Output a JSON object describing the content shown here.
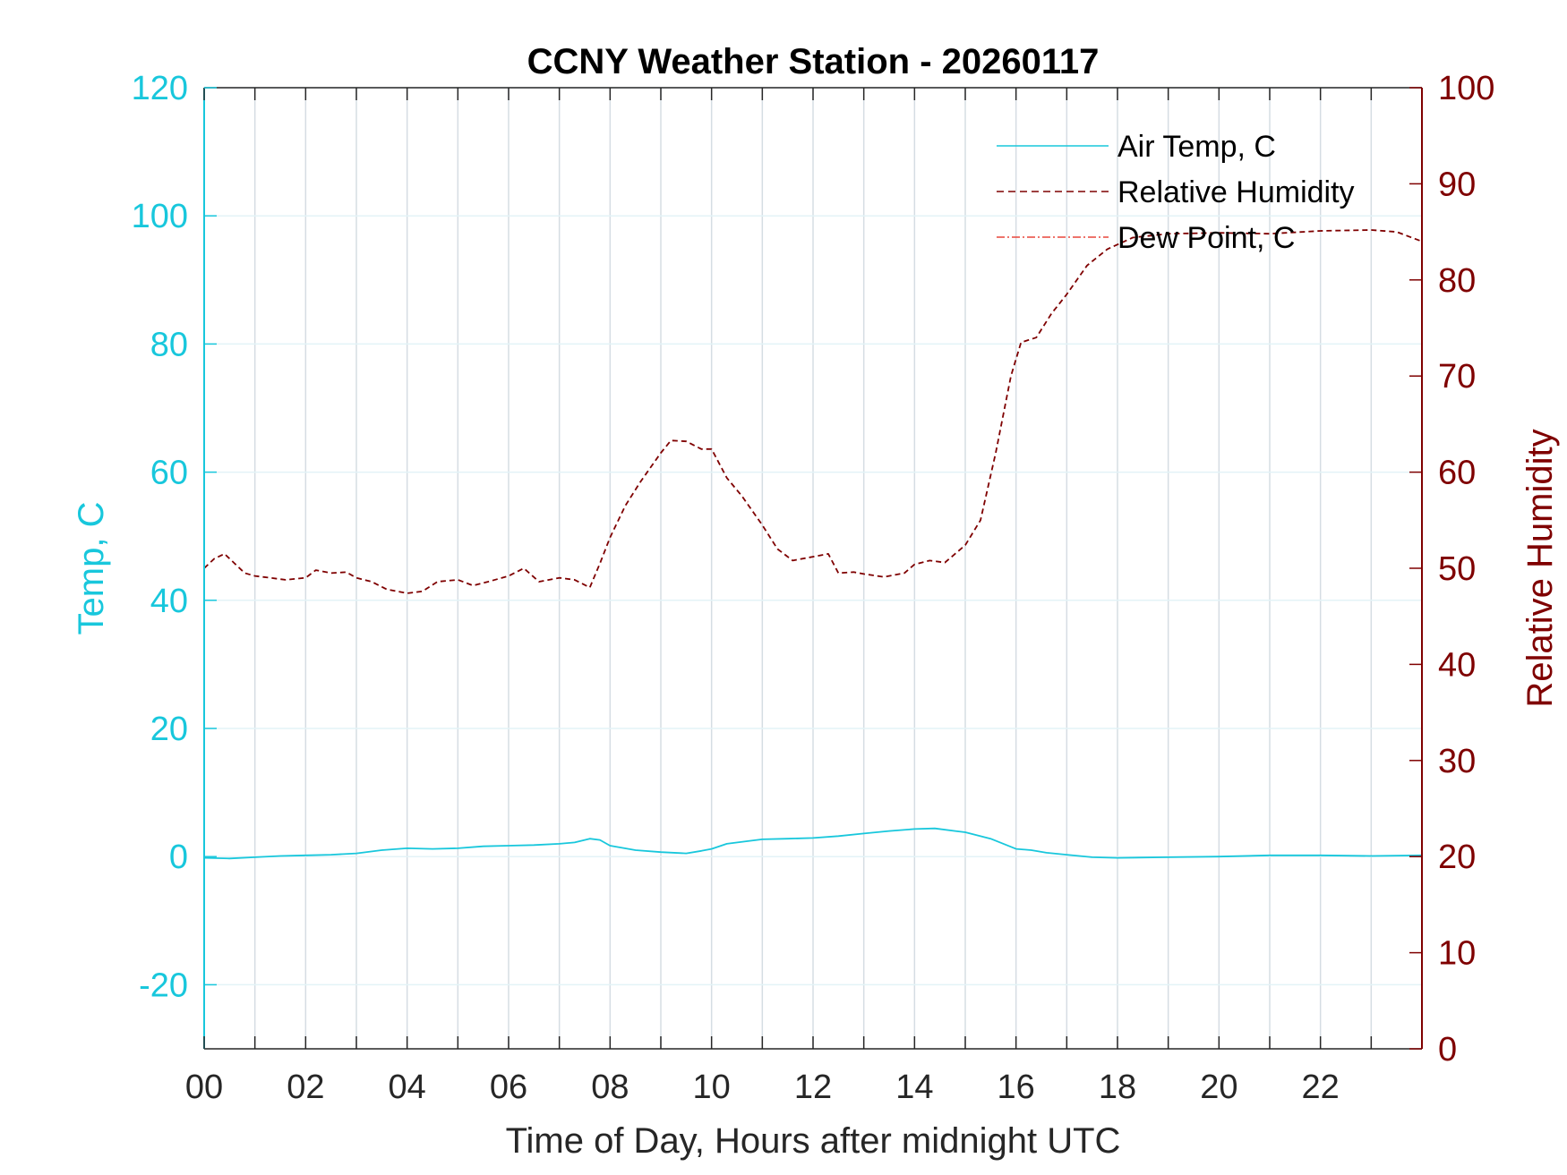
{
  "colors": {
    "temp": "#18c7dc",
    "rh": "#7f0000",
    "dew": "#e8463c",
    "grid": "#d5dde3",
    "axis": "#262626"
  },
  "chart_data": {
    "type": "line",
    "title": "CCNY Weather Station - 20260117",
    "xlabel": "Time of Day, Hours after midnight UTC",
    "ylabel": "Temp, C",
    "y2label": "Relative Humidity",
    "xlim": [
      0,
      24
    ],
    "ylim": [
      -30,
      120
    ],
    "y2lim": [
      0,
      100
    ],
    "grid": true,
    "legend_position": "top-right",
    "x_ticks": [
      {
        "value": 0,
        "label": "00"
      },
      {
        "value": 2,
        "label": "02"
      },
      {
        "value": 4,
        "label": "04"
      },
      {
        "value": 6,
        "label": "06"
      },
      {
        "value": 8,
        "label": "08"
      },
      {
        "value": 10,
        "label": "10"
      },
      {
        "value": 12,
        "label": "12"
      },
      {
        "value": 14,
        "label": "14"
      },
      {
        "value": 16,
        "label": "16"
      },
      {
        "value": 18,
        "label": "18"
      },
      {
        "value": 20,
        "label": "20"
      },
      {
        "value": 22,
        "label": "22"
      }
    ],
    "y_ticks": [
      -20,
      0,
      20,
      40,
      60,
      80,
      100,
      120
    ],
    "y2_ticks": [
      0,
      10,
      20,
      30,
      40,
      50,
      60,
      70,
      80,
      90,
      100
    ],
    "series": [
      {
        "name": "Air Temp, C",
        "axis": "left",
        "style": "solid",
        "points": [
          [
            0,
            -0.2
          ],
          [
            0.5,
            -0.3
          ],
          [
            1,
            -0.1
          ],
          [
            1.5,
            0.1
          ],
          [
            2,
            0.2
          ],
          [
            2.5,
            0.3
          ],
          [
            3,
            0.5
          ],
          [
            3.5,
            1.0
          ],
          [
            4,
            1.3
          ],
          [
            4.5,
            1.2
          ],
          [
            5,
            1.3
          ],
          [
            5.5,
            1.6
          ],
          [
            6,
            1.7
          ],
          [
            6.5,
            1.8
          ],
          [
            7,
            2.0
          ],
          [
            7.3,
            2.2
          ],
          [
            7.6,
            2.8
          ],
          [
            7.8,
            2.6
          ],
          [
            8,
            1.7
          ],
          [
            8.5,
            1.0
          ],
          [
            9,
            0.7
          ],
          [
            9.5,
            0.5
          ],
          [
            9.8,
            0.9
          ],
          [
            10,
            1.2
          ],
          [
            10.3,
            2.0
          ],
          [
            10.7,
            2.4
          ],
          [
            11,
            2.7
          ],
          [
            11.5,
            2.8
          ],
          [
            12,
            2.9
          ],
          [
            12.5,
            3.2
          ],
          [
            13,
            3.6
          ],
          [
            13.5,
            4.0
          ],
          [
            14,
            4.3
          ],
          [
            14.4,
            4.4
          ],
          [
            14.8,
            4.0
          ],
          [
            15,
            3.8
          ],
          [
            15.5,
            2.8
          ],
          [
            16,
            1.2
          ],
          [
            16.3,
            1.0
          ],
          [
            16.6,
            0.6
          ],
          [
            17,
            0.3
          ],
          [
            17.5,
            -0.1
          ],
          [
            18,
            -0.2
          ],
          [
            19,
            -0.1
          ],
          [
            20,
            0.0
          ],
          [
            21,
            0.2
          ],
          [
            22,
            0.2
          ],
          [
            23,
            0.1
          ],
          [
            24,
            0.2
          ]
        ]
      },
      {
        "name": "Relative Humidity",
        "axis": "right",
        "style": "dashed",
        "points": [
          [
            0,
            50
          ],
          [
            0.2,
            51
          ],
          [
            0.4,
            51.5
          ],
          [
            0.6,
            50.5
          ],
          [
            0.8,
            49.5
          ],
          [
            1,
            49.2
          ],
          [
            1.3,
            49
          ],
          [
            1.6,
            48.8
          ],
          [
            2,
            49
          ],
          [
            2.2,
            49.8
          ],
          [
            2.5,
            49.5
          ],
          [
            2.8,
            49.6
          ],
          [
            3,
            49
          ],
          [
            3.3,
            48.6
          ],
          [
            3.6,
            47.8
          ],
          [
            4,
            47.4
          ],
          [
            4.3,
            47.6
          ],
          [
            4.6,
            48.6
          ],
          [
            5,
            48.8
          ],
          [
            5.3,
            48.2
          ],
          [
            5.6,
            48.6
          ],
          [
            6,
            49.2
          ],
          [
            6.3,
            50
          ],
          [
            6.6,
            48.6
          ],
          [
            7,
            49
          ],
          [
            7.3,
            48.8
          ],
          [
            7.6,
            48
          ],
          [
            7.8,
            50.5
          ],
          [
            8,
            53.2
          ],
          [
            8.3,
            56.5
          ],
          [
            8.6,
            59
          ],
          [
            9,
            62
          ],
          [
            9.2,
            63.3
          ],
          [
            9.5,
            63.2
          ],
          [
            9.8,
            62.4
          ],
          [
            10,
            62.4
          ],
          [
            10.3,
            59.4
          ],
          [
            10.6,
            57.5
          ],
          [
            11,
            54.5
          ],
          [
            11.3,
            52
          ],
          [
            11.6,
            50.8
          ],
          [
            12,
            51.2
          ],
          [
            12.3,
            51.5
          ],
          [
            12.5,
            49.5
          ],
          [
            12.8,
            49.6
          ],
          [
            13,
            49.4
          ],
          [
            13.4,
            49.1
          ],
          [
            13.8,
            49.5
          ],
          [
            14,
            50.4
          ],
          [
            14.3,
            50.8
          ],
          [
            14.6,
            50.6
          ],
          [
            15,
            52.4
          ],
          [
            15.3,
            55
          ],
          [
            15.6,
            62
          ],
          [
            15.9,
            70
          ],
          [
            16.1,
            73.5
          ],
          [
            16.4,
            74
          ],
          [
            16.7,
            76.5
          ],
          [
            17,
            78.5
          ],
          [
            17.4,
            81.5
          ],
          [
            17.8,
            83.2
          ],
          [
            18.3,
            84.4
          ],
          [
            19,
            84.8
          ],
          [
            20,
            84.9
          ],
          [
            21,
            84.8
          ],
          [
            22,
            85.1
          ],
          [
            23,
            85.2
          ],
          [
            23.5,
            85
          ],
          [
            24,
            84
          ]
        ]
      },
      {
        "name": "Dew Point, C",
        "axis": "left",
        "style": "dashdot",
        "points": []
      }
    ]
  }
}
